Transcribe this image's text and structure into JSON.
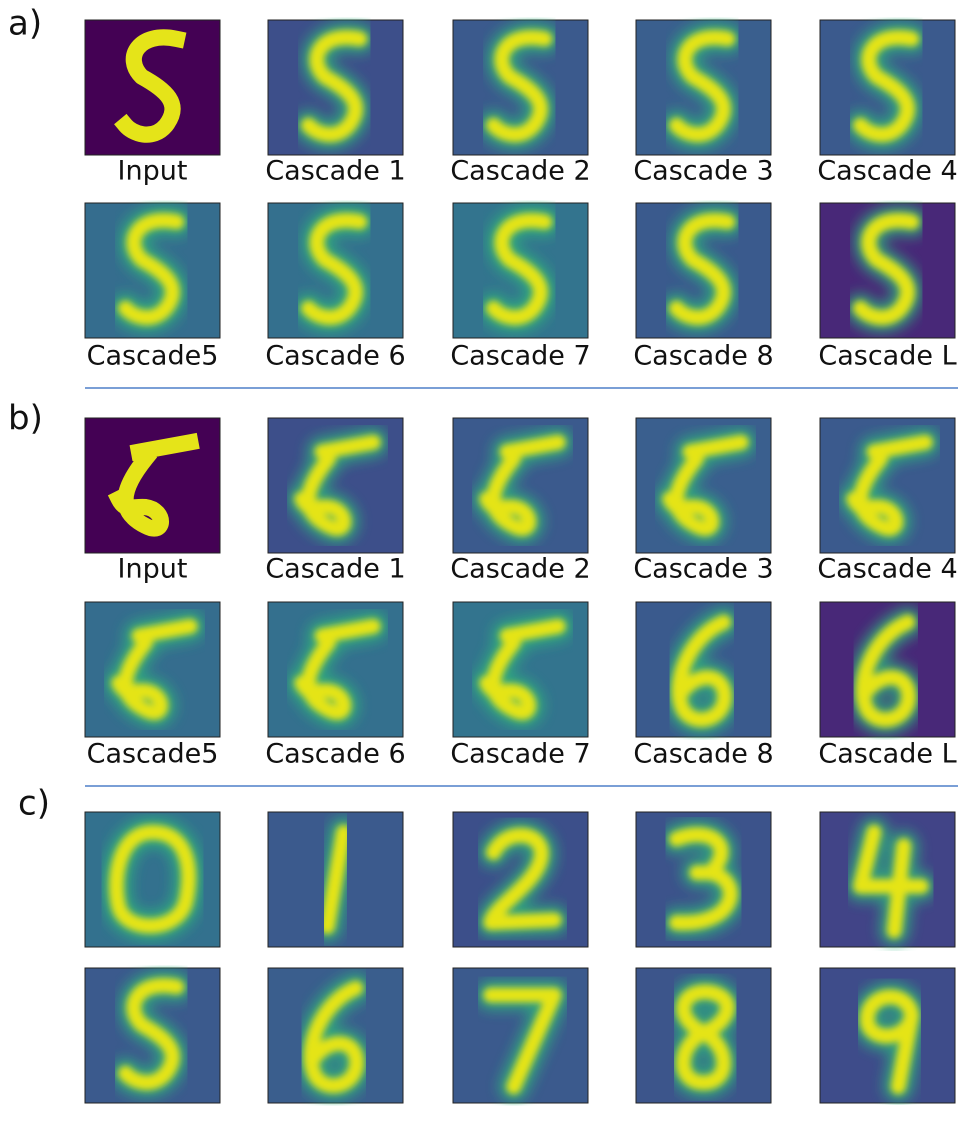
{
  "panels": [
    {
      "label": "a)",
      "tiles": [
        {
          "caption": "Input"
        },
        {
          "caption": "Cascade 1"
        },
        {
          "caption": "Cascade 2"
        },
        {
          "caption": "Cascade 3"
        },
        {
          "caption": "Cascade 4"
        },
        {
          "caption": "Cascade5"
        },
        {
          "caption": "Cascade 6"
        },
        {
          "caption": "Cascade 7"
        },
        {
          "caption": "Cascade 8"
        },
        {
          "caption": "Cascade L"
        }
      ]
    },
    {
      "label": "b)",
      "tiles": [
        {
          "caption": "Input"
        },
        {
          "caption": "Cascade 1"
        },
        {
          "caption": "Cascade 2"
        },
        {
          "caption": "Cascade 3"
        },
        {
          "caption": "Cascade 4"
        },
        {
          "caption": "Cascade5"
        },
        {
          "caption": "Cascade 6"
        },
        {
          "caption": "Cascade 7"
        },
        {
          "caption": "Cascade 8"
        },
        {
          "caption": "Cascade L"
        }
      ]
    },
    {
      "label": "c)"
    }
  ]
}
